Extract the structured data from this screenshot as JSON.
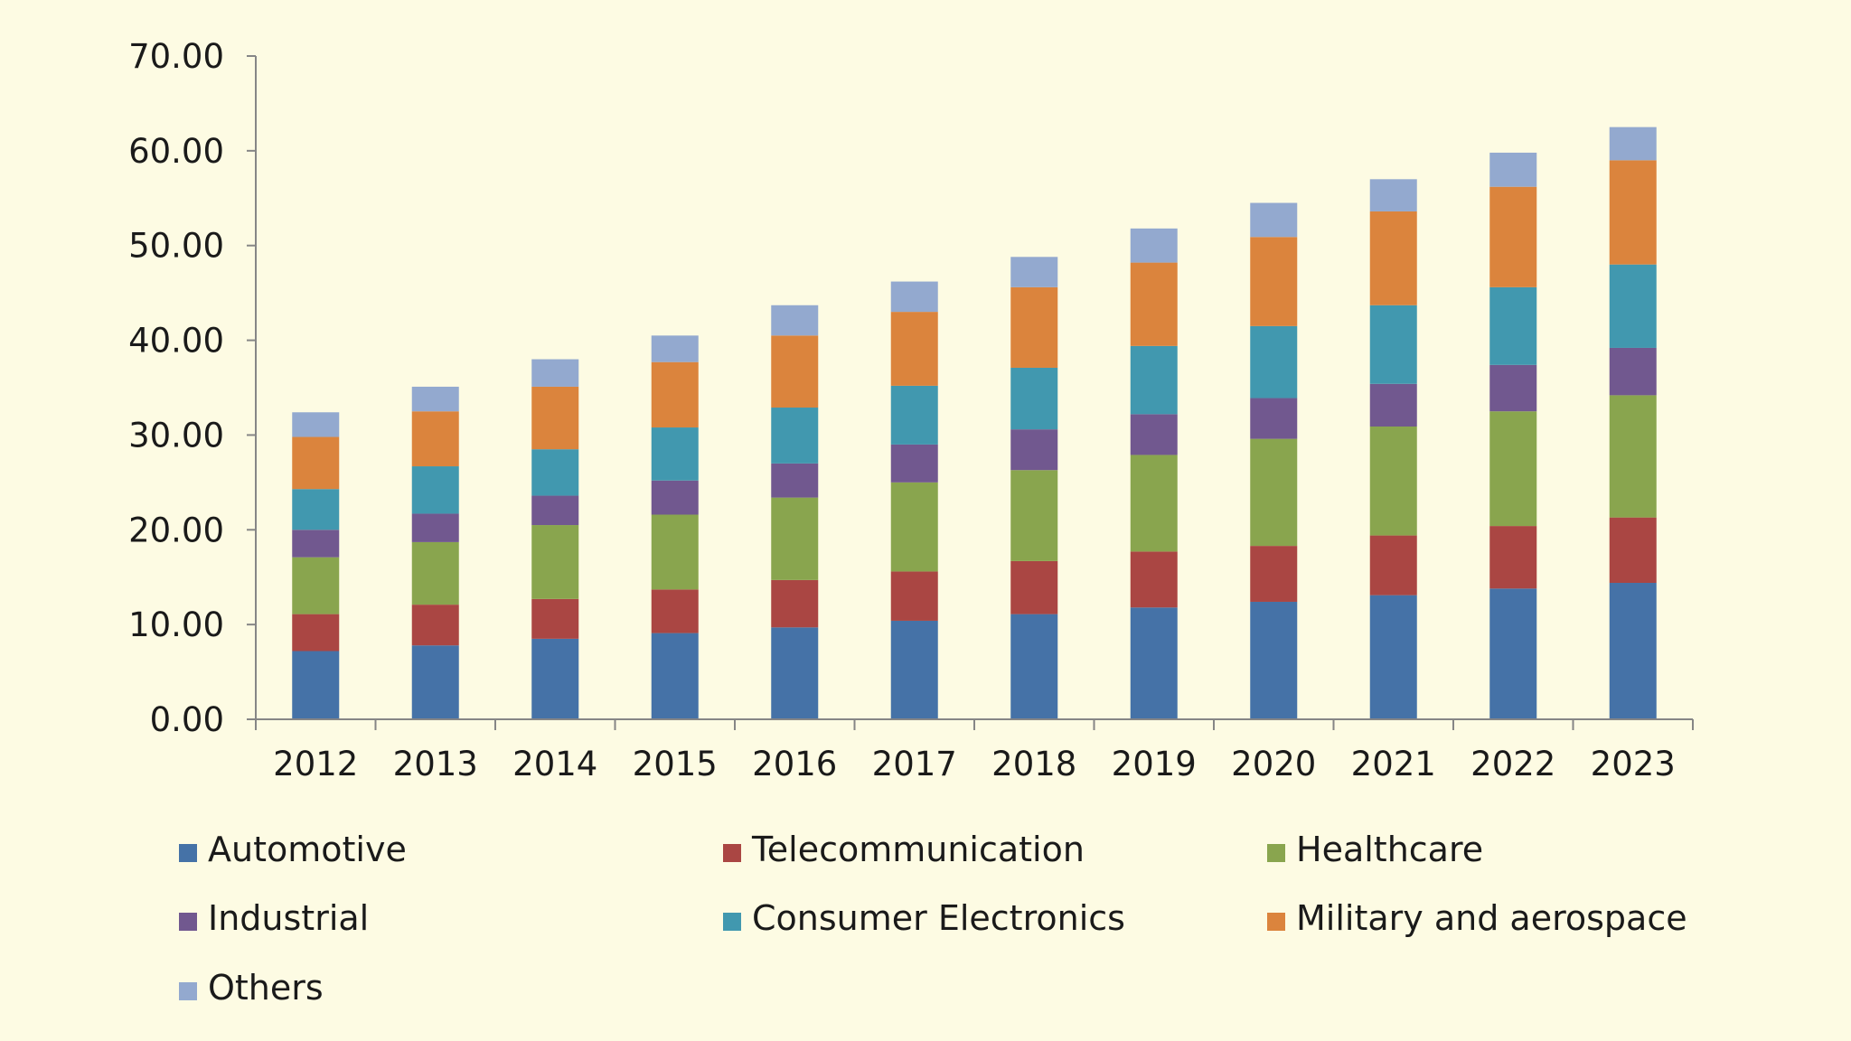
{
  "chart_data": {
    "type": "bar",
    "stacked": true,
    "title": "",
    "xlabel": "",
    "ylabel": "",
    "ylim": [
      0,
      70
    ],
    "y_ticks": [
      "0.00",
      "10.00",
      "20.00",
      "30.00",
      "40.00",
      "50.00",
      "60.00",
      "70.00"
    ],
    "y_tick_values": [
      0,
      10,
      20,
      30,
      40,
      50,
      60,
      70
    ],
    "grid": false,
    "legend_position": "bottom",
    "categories": [
      "2012",
      "2013",
      "2014",
      "2015",
      "2016",
      "2017",
      "2018",
      "2019",
      "2020",
      "2021",
      "2022",
      "2023"
    ],
    "series": [
      {
        "name": "Automotive",
        "color": "#4572a7",
        "values": [
          7.2,
          7.8,
          8.5,
          9.1,
          9.7,
          10.4,
          11.1,
          11.8,
          12.4,
          13.1,
          13.8,
          14.4
        ]
      },
      {
        "name": "Telecommunication",
        "color": "#aa4643",
        "values": [
          3.9,
          4.3,
          4.2,
          4.6,
          5.0,
          5.2,
          5.6,
          5.9,
          5.9,
          6.3,
          6.6,
          6.9
        ]
      },
      {
        "name": "Healthcare",
        "color": "#89a54e",
        "values": [
          6.0,
          6.6,
          7.8,
          7.9,
          8.7,
          9.4,
          9.6,
          10.2,
          11.3,
          11.5,
          12.1,
          12.9
        ]
      },
      {
        "name": "Industrial",
        "color": "#71588f",
        "values": [
          2.9,
          3.0,
          3.1,
          3.6,
          3.6,
          4.0,
          4.3,
          4.3,
          4.3,
          4.5,
          4.9,
          5.0
        ]
      },
      {
        "name": "Consumer Electronics",
        "color": "#4198af",
        "values": [
          4.3,
          5.0,
          4.9,
          5.6,
          5.9,
          6.2,
          6.5,
          7.2,
          7.6,
          8.3,
          8.2,
          8.8
        ]
      },
      {
        "name": "Military and aerospace",
        "color": "#db843d",
        "values": [
          5.5,
          5.8,
          6.6,
          6.9,
          7.6,
          7.8,
          8.5,
          8.8,
          9.4,
          9.9,
          10.6,
          11.0
        ]
      },
      {
        "name": "Others",
        "color": "#93a9cf",
        "values": [
          2.6,
          2.6,
          2.9,
          2.8,
          3.2,
          3.2,
          3.2,
          3.6,
          3.6,
          3.4,
          3.6,
          3.5
        ]
      }
    ]
  }
}
